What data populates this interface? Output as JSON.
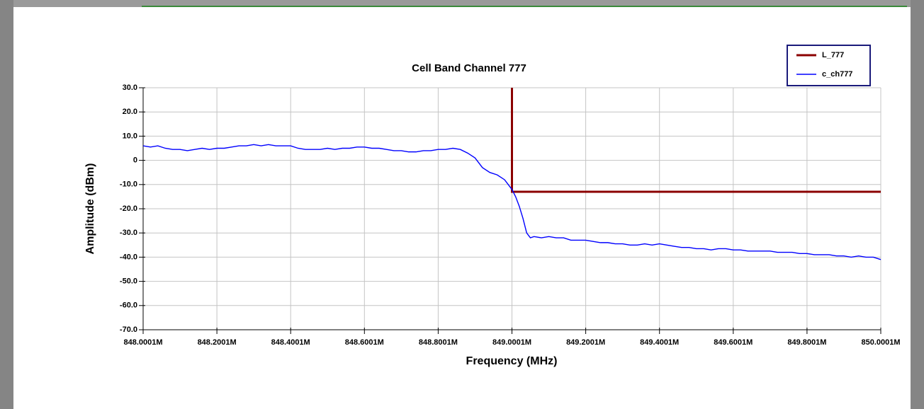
{
  "chart_data": {
    "type": "line",
    "title": "Cell Band Channel 777",
    "x_label": "Frequency (MHz)",
    "y_label": "Amplitude (dBm)",
    "xlim": [
      848.0001,
      850.0001
    ],
    "ylim": [
      -70,
      30
    ],
    "xticks": [
      {
        "value": 848.0001,
        "label": "848.0001M"
      },
      {
        "value": 848.2001,
        "label": "848.2001M"
      },
      {
        "value": 848.4001,
        "label": "848.4001M"
      },
      {
        "value": 848.6001,
        "label": "848.6001M"
      },
      {
        "value": 848.8001,
        "label": "848.8001M"
      },
      {
        "value": 849.0001,
        "label": "849.0001M"
      },
      {
        "value": 849.2001,
        "label": "849.2001M"
      },
      {
        "value": 849.4001,
        "label": "849.4001M"
      },
      {
        "value": 849.6001,
        "label": "849.6001M"
      },
      {
        "value": 849.8001,
        "label": "849.8001M"
      },
      {
        "value": 850.0001,
        "label": "850.0001M"
      }
    ],
    "yticks": [
      {
        "value": 30,
        "label": "30.0"
      },
      {
        "value": 20,
        "label": "20.0"
      },
      {
        "value": 10,
        "label": "10.0"
      },
      0,
      {
        "value": -10,
        "label": "-10.0"
      },
      {
        "value": -20,
        "label": "-20.0"
      },
      {
        "value": -30,
        "label": "-30.0"
      },
      {
        "value": -40,
        "label": "-40.0"
      },
      {
        "value": -50,
        "label": "-50.0"
      },
      {
        "value": -60,
        "label": "-60.0"
      },
      {
        "value": -70,
        "label": "-70.0"
      }
    ],
    "grid": true,
    "legend": "top-right",
    "series": [
      {
        "name": "L_777",
        "color": "#8b0000",
        "x": [
          849.0001,
          849.0001,
          850.0001
        ],
        "values": [
          30,
          -13,
          -13
        ]
      },
      {
        "name": "c_ch777",
        "color": "#0000ff",
        "x": [
          848.0001,
          848.02,
          848.04,
          848.06,
          848.08,
          848.1,
          848.12,
          848.14,
          848.16,
          848.18,
          848.2,
          848.22,
          848.24,
          848.26,
          848.28,
          848.3,
          848.32,
          848.34,
          848.36,
          848.38,
          848.4,
          848.42,
          848.44,
          848.46,
          848.48,
          848.5,
          848.52,
          848.54,
          848.56,
          848.58,
          848.6,
          848.62,
          848.64,
          848.66,
          848.68,
          848.7,
          848.72,
          848.74,
          848.76,
          848.78,
          848.8,
          848.82,
          848.84,
          848.86,
          848.88,
          848.9,
          848.92,
          848.94,
          848.96,
          848.98,
          849.0,
          849.01,
          849.02,
          849.03,
          849.04,
          849.05,
          849.06,
          849.08,
          849.1,
          849.12,
          849.14,
          849.16,
          849.18,
          849.2,
          849.22,
          849.24,
          849.26,
          849.28,
          849.3,
          849.32,
          849.34,
          849.36,
          849.38,
          849.4,
          849.42,
          849.44,
          849.46,
          849.48,
          849.5,
          849.52,
          849.54,
          849.56,
          849.58,
          849.6,
          849.62,
          849.64,
          849.66,
          849.68,
          849.7,
          849.72,
          849.74,
          849.76,
          849.78,
          849.8,
          849.82,
          849.84,
          849.86,
          849.88,
          849.9,
          849.92,
          849.94,
          849.96,
          849.98,
          850.0001
        ],
        "values": [
          6,
          5.5,
          6,
          5,
          4.5,
          4.5,
          4,
          4.5,
          5,
          4.5,
          5,
          5,
          5.5,
          6,
          6,
          6.5,
          6,
          6.5,
          6,
          6,
          6,
          5,
          4.5,
          4.5,
          4.5,
          5,
          4.5,
          5,
          5,
          5.5,
          5.5,
          5,
          5,
          4.5,
          4,
          4,
          3.5,
          3.5,
          4,
          4,
          4.5,
          4.5,
          5,
          4.5,
          3,
          1,
          -3,
          -5,
          -6,
          -8,
          -12,
          -15,
          -19,
          -24,
          -30,
          -32,
          -31.5,
          -32,
          -31.5,
          -32,
          -32,
          -33,
          -33,
          -33,
          -33.5,
          -34,
          -34,
          -34.5,
          -34.5,
          -35,
          -35,
          -34.5,
          -35,
          -34.5,
          -35,
          -35.5,
          -36,
          -36,
          -36.5,
          -36.5,
          -37,
          -36.5,
          -36.5,
          -37,
          -37,
          -37.5,
          -37.5,
          -37.5,
          -37.5,
          -38,
          -38,
          -38,
          -38.5,
          -38.5,
          -39,
          -39,
          -39,
          -39.5,
          -39.5,
          -40,
          -39.5,
          -40,
          -40,
          -41
        ]
      }
    ]
  }
}
